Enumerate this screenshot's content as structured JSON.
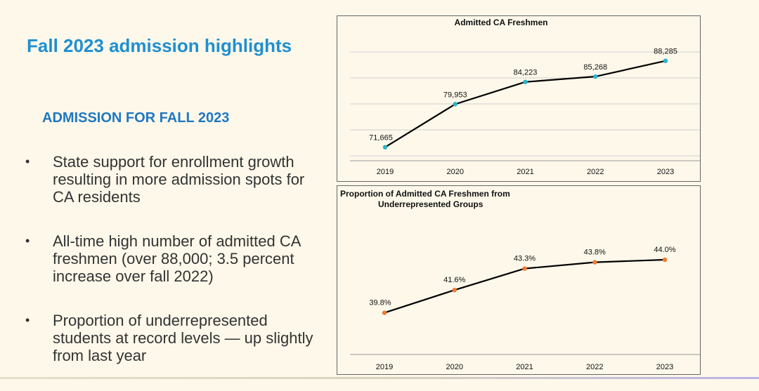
{
  "slide": {
    "title": "Fall 2023 admission highlights",
    "section_heading": "ADMISSION FOR FALL 2023",
    "bullets": [
      "State support for enrollment growth resulting in more admission spots for CA residents",
      "All-time high number of admitted CA freshmen (over 88,000; 3.5 percent increase over fall 2022)",
      "Proportion of underrepresented students at record levels — up slightly from last year"
    ],
    "bullet_glyph": "•"
  },
  "colors": {
    "title": "#1f8fd0",
    "heading": "#1f78c1",
    "chart1_marker": "#2bb3c9",
    "chart2_marker": "#ee7b34",
    "line": "#000000"
  },
  "chart_data": [
    {
      "type": "line",
      "title": "Admitted CA Freshmen",
      "categories": [
        "2019",
        "2020",
        "2021",
        "2022",
        "2023"
      ],
      "values": [
        71665,
        79953,
        84223,
        85268,
        88285
      ],
      "data_labels": [
        "71,665",
        "79,953",
        "84,223",
        "85,268",
        "88,285"
      ],
      "ylim": [
        70000,
        90000
      ],
      "grid": true,
      "xlabel": "",
      "ylabel": ""
    },
    {
      "type": "line",
      "title": "Proportion of Admitted CA Freshmen from Underrepresented Groups",
      "title_lines": [
        "Proportion of Admitted CA Freshmen from",
        "Underrepresented Groups"
      ],
      "categories": [
        "2019",
        "2020",
        "2021",
        "2022",
        "2023"
      ],
      "values": [
        39.8,
        41.6,
        43.3,
        43.8,
        44.0
      ],
      "data_labels": [
        "39.8%",
        "41.6%",
        "43.3%",
        "43.8%",
        "44.0%"
      ],
      "ylim": [
        36,
        46
      ],
      "grid": false,
      "xlabel": "",
      "ylabel": ""
    }
  ]
}
